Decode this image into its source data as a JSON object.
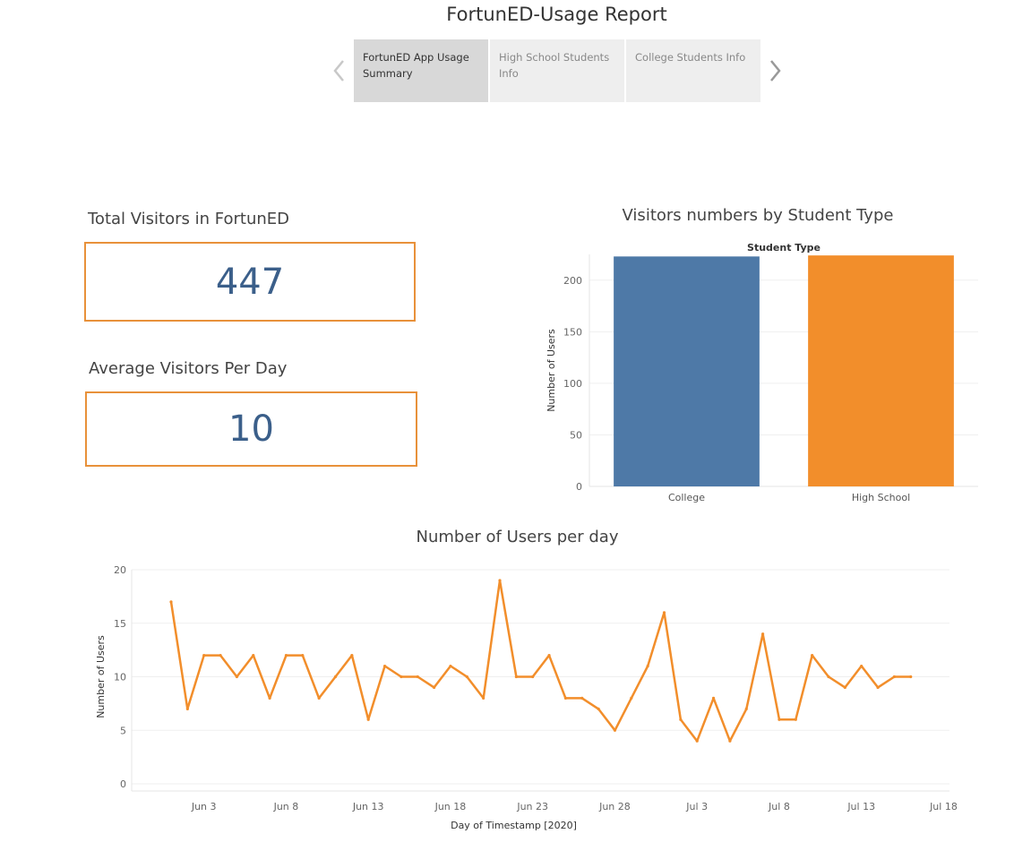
{
  "report": {
    "title": "FortunED-Usage Report"
  },
  "story_tabs": [
    {
      "label": "FortunED App Usage Summary",
      "active": true
    },
    {
      "label": "High School Students Info",
      "active": false
    },
    {
      "label": "College Students Info",
      "active": false
    }
  ],
  "kpis": {
    "total_visitors": {
      "title": "Total Visitors in FortunED",
      "value": "447"
    },
    "avg_visitors": {
      "title": "Average Visitors Per Day",
      "value": "10"
    }
  },
  "colors": {
    "blue": "#4e79a7",
    "orange": "#f28e2b",
    "kpi_border": "#e8913a",
    "kpi_value": "#3b5f8a"
  },
  "chart_data": [
    {
      "type": "bar",
      "title": "Visitors numbers by Student Type",
      "header": "Student Type",
      "ylabel": "Number of Users",
      "xlabel": "",
      "ylim": [
        0,
        225
      ],
      "yticks": [
        0,
        50,
        100,
        150,
        200
      ],
      "categories": [
        "College",
        "High School"
      ],
      "values": [
        223,
        224
      ],
      "colors": [
        "#4e79a7",
        "#f28e2b"
      ]
    },
    {
      "type": "line",
      "title": "Number of Users per day",
      "xlabel": "Day of Timestamp [2020]",
      "ylabel": "Number of Users",
      "ylim": [
        0,
        20
      ],
      "yticks": [
        0,
        5,
        10,
        15,
        20
      ],
      "xticks": [
        {
          "day": 3,
          "label": "Jun 3"
        },
        {
          "day": 8,
          "label": "Jun 8"
        },
        {
          "day": 13,
          "label": "Jun 13"
        },
        {
          "day": 18,
          "label": "Jun 18"
        },
        {
          "day": 23,
          "label": "Jun 23"
        },
        {
          "day": 28,
          "label": "Jun 28"
        },
        {
          "day": 33,
          "label": "Jul 3"
        },
        {
          "day": 38,
          "label": "Jul 8"
        },
        {
          "day": 43,
          "label": "Jul 13"
        },
        {
          "day": 48,
          "label": "Jul 18"
        }
      ],
      "series": [
        {
          "name": "Number of Users",
          "x": [
            1,
            2,
            3,
            4,
            5,
            6,
            7,
            8,
            9,
            10,
            11,
            12,
            13,
            14,
            15,
            16,
            17,
            18,
            19,
            20,
            21,
            22,
            23,
            24,
            25,
            26,
            27,
            28,
            29,
            30,
            31,
            32,
            33,
            34,
            35,
            36,
            37,
            38,
            39,
            40,
            41,
            42,
            43,
            44,
            45,
            46
          ],
          "values": [
            17,
            7,
            12,
            12,
            10,
            12,
            8,
            12,
            12,
            8,
            10,
            12,
            6,
            11,
            10,
            10,
            9,
            11,
            10,
            8,
            19,
            10,
            10,
            12,
            8,
            8,
            7,
            5,
            8,
            11,
            16,
            6,
            4,
            8,
            4,
            7,
            14,
            6,
            6,
            12,
            10,
            9,
            11,
            9,
            10,
            10
          ],
          "color": "#f28e2b"
        }
      ]
    }
  ]
}
